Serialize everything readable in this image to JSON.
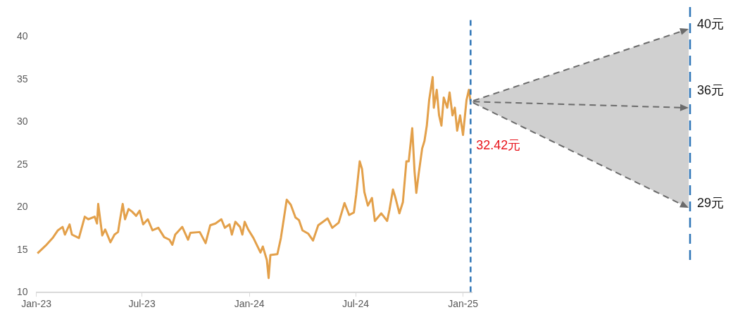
{
  "chart_data": {
    "type": "line",
    "x": [
      "2023-01-03",
      "2023-01-17",
      "2023-01-29",
      "2023-02-07",
      "2023-02-15",
      "2023-02-19",
      "2023-02-27",
      "2023-03-03",
      "2023-03-15",
      "2023-03-25",
      "2023-03-31",
      "2023-04-11",
      "2023-04-15",
      "2023-04-17",
      "2023-04-24",
      "2023-04-29",
      "2023-05-08",
      "2023-05-15",
      "2023-05-21",
      "2023-05-24",
      "2023-05-29",
      "2023-06-02",
      "2023-06-08",
      "2023-06-14",
      "2023-06-21",
      "2023-06-27",
      "2023-07-03",
      "2023-07-11",
      "2023-07-19",
      "2023-07-29",
      "2023-08-08",
      "2023-08-17",
      "2023-08-22",
      "2023-08-27",
      "2023-09-08",
      "2023-09-18",
      "2023-09-22",
      "2023-10-08",
      "2023-10-18",
      "2023-10-26",
      "2023-11-04",
      "2023-11-14",
      "2023-11-20",
      "2023-11-28",
      "2023-12-02",
      "2023-12-08",
      "2023-12-16",
      "2023-12-20",
      "2023-12-24",
      "2023-12-30",
      "2024-01-08",
      "2024-01-20",
      "2024-01-24",
      "2024-01-31",
      "2024-02-03",
      "2024-02-06",
      "2024-02-18",
      "2024-02-24",
      "2024-03-01",
      "2024-03-05",
      "2024-03-12",
      "2024-03-20",
      "2024-03-26",
      "2024-04-01",
      "2024-04-11",
      "2024-04-19",
      "2024-04-28",
      "2024-05-08",
      "2024-05-14",
      "2024-05-22",
      "2024-06-02",
      "2024-06-12",
      "2024-06-20",
      "2024-06-28",
      "2024-07-02",
      "2024-07-08",
      "2024-07-12",
      "2024-07-16",
      "2024-07-22",
      "2024-07-29",
      "2024-08-03",
      "2024-08-14",
      "2024-08-24",
      "2024-08-28",
      "2024-09-03",
      "2024-09-07",
      "2024-09-14",
      "2024-09-20",
      "2024-09-26",
      "2024-09-30",
      "2024-10-06",
      "2024-10-10",
      "2024-10-13",
      "2024-10-17",
      "2024-10-23",
      "2024-10-27",
      "2024-10-31",
      "2024-11-04",
      "2024-11-10",
      "2024-11-12",
      "2024-11-17",
      "2024-11-21",
      "2024-11-25",
      "2024-11-29",
      "2024-12-05",
      "2024-12-09",
      "2024-12-14",
      "2024-12-18",
      "2024-12-22",
      "2024-12-27",
      "2025-01-01",
      "2025-01-07",
      "2025-01-11",
      "2025-01-14"
    ],
    "series": [
      {
        "color": "#e3a04a",
        "values": [
          14.6,
          15.5,
          16.4,
          17.3,
          17.7,
          16.8,
          18.0,
          16.8,
          16.4,
          18.9,
          18.6,
          18.9,
          18.1,
          20.4,
          16.7,
          17.4,
          15.9,
          16.8,
          17.1,
          18.4,
          20.4,
          18.6,
          19.8,
          19.5,
          19.0,
          19.6,
          18.0,
          18.6,
          17.3,
          17.6,
          16.5,
          16.2,
          15.6,
          16.8,
          17.7,
          16.2,
          17.0,
          17.1,
          15.8,
          17.9,
          18.1,
          18.6,
          17.6,
          18.0,
          16.8,
          18.3,
          17.7,
          16.8,
          18.3,
          17.4,
          16.4,
          14.7,
          15.4,
          13.8,
          11.7,
          14.4,
          14.5,
          16.4,
          19.1,
          20.9,
          20.3,
          18.8,
          18.5,
          17.3,
          16.9,
          16.1,
          17.9,
          18.4,
          18.7,
          17.6,
          18.2,
          20.5,
          19.1,
          19.4,
          21.5,
          25.4,
          24.5,
          21.8,
          20.2,
          21.1,
          18.4,
          19.3,
          18.4,
          19.7,
          22.1,
          21.2,
          19.3,
          20.6,
          25.4,
          25.4,
          29.3,
          24.2,
          21.7,
          23.9,
          26.9,
          27.8,
          29.6,
          32.6,
          35.3,
          31.7,
          33.8,
          30.8,
          29.6,
          32.9,
          31.7,
          33.5,
          30.8,
          31.7,
          29.0,
          30.8,
          28.5,
          32.6,
          33.8,
          32.42
        ]
      }
    ],
    "xlim": [
      "2023-01-01",
      "2025-01-16"
    ],
    "xticks": [
      {
        "value": "2023-01-01",
        "label": "Jan-23"
      },
      {
        "value": "2023-07-01",
        "label": "Jul-23"
      },
      {
        "value": "2024-01-01",
        "label": "Jan-24"
      },
      {
        "value": "2024-07-01",
        "label": "Jul-24"
      },
      {
        "value": "2025-01-01",
        "label": "Jan-25"
      }
    ],
    "ylim": [
      10,
      42
    ],
    "yticks": [
      10,
      15,
      20,
      25,
      30,
      35,
      40
    ],
    "grid": false,
    "legend": false,
    "marker": "none",
    "line_style": "solid",
    "ref_lines": [
      {
        "axis": "x",
        "value": "2025-01-14",
        "color": "#2e75b6",
        "line_style": "dashed"
      }
    ],
    "annotations": [
      "40元",
      "36元",
      {
        "text": "32.42元",
        "x": "2025-01-14",
        "y": 32.42
      },
      "29元"
    ]
  }
}
